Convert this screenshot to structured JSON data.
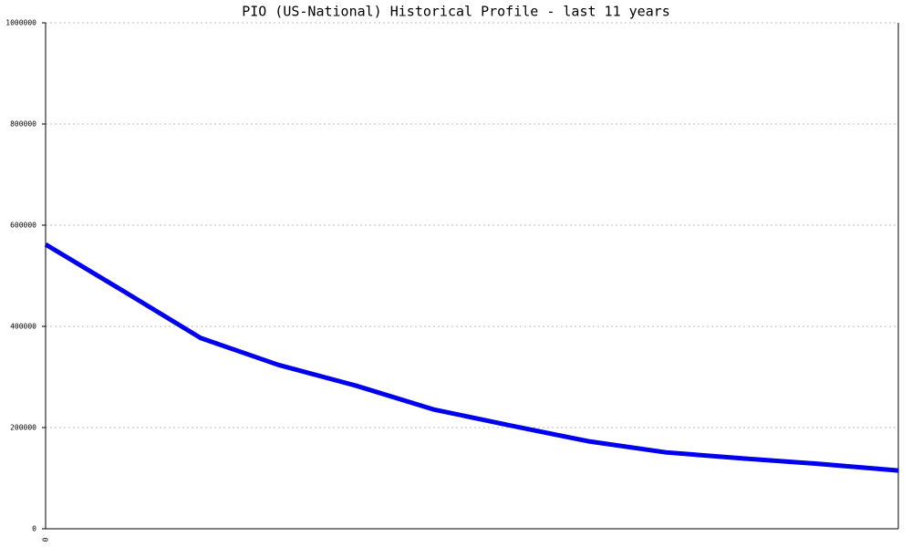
{
  "chart_data": {
    "type": "line",
    "title": "PIO (US-National) Historical Profile - last 11 years",
    "categories": [
      "0",
      null,
      null,
      null,
      null,
      null,
      null,
      null,
      null,
      null,
      null,
      null
    ],
    "series": [
      {
        "name": "PIO",
        "color": "#0000ee",
        "values": [
          562000,
          470000,
          377000,
          324000,
          283000,
          236000,
          204000,
          173000,
          151000,
          139000,
          128000,
          115000
        ]
      }
    ],
    "ylim": [
      0,
      1000000
    ],
    "yticks": [
      0,
      200000,
      400000,
      600000,
      800000,
      1000000
    ],
    "grid": true
  }
}
